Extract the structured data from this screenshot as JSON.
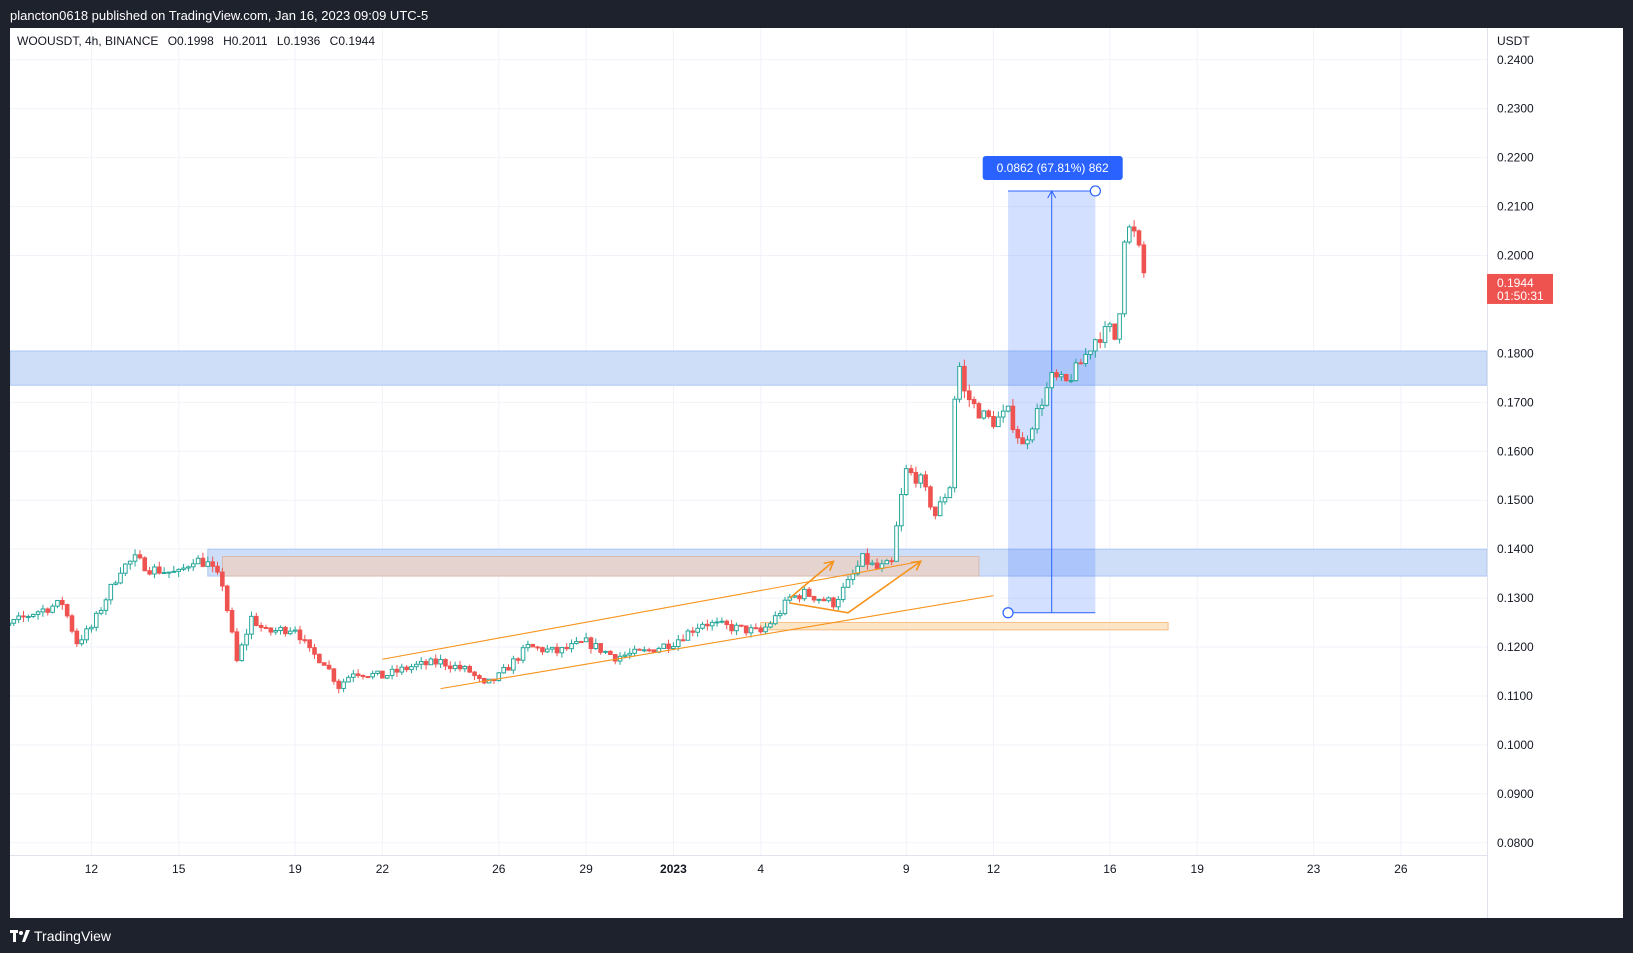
{
  "header": {
    "published_text": "plancton0618 published on TradingView.com, Jan 16, 2023 09:09 UTC-5"
  },
  "footer": {
    "brand": "TradingView"
  },
  "chart_data": {
    "type": "candlestick",
    "symbol": "WOOUSDT",
    "interval": "4h",
    "exchange": "BINANCE",
    "symbol_line": "WOOUSDT, 4h, BINANCE",
    "ohlc": {
      "open": "O0.1998",
      "high": "H0.2011",
      "low": "L0.1936",
      "close": "C0.1944"
    },
    "currency": "USDT",
    "last_price": {
      "value": 0.1944,
      "label": "0.1944",
      "countdown": "01:50:31"
    },
    "y_axis": {
      "ylim": [
        0.0775,
        0.2465
      ],
      "ticks": [
        0.08,
        0.09,
        0.1,
        0.11,
        0.12,
        0.13,
        0.14,
        0.15,
        0.16,
        0.17,
        0.18,
        0.2,
        0.21,
        0.22,
        0.23,
        0.24
      ],
      "tick_labels": [
        "0.0800",
        "0.0900",
        "0.1000",
        "0.1100",
        "0.1200",
        "0.1300",
        "0.1400",
        "0.1500",
        "0.1600",
        "0.1700",
        "0.1800",
        "0.2000",
        "0.2100",
        "0.2200",
        "0.2300",
        "0.2400"
      ]
    },
    "x_axis": {
      "date_range": [
        "2022-12-08",
        "2023-01-29"
      ],
      "ticks": [
        {
          "date": "2022-12-12",
          "label": "12"
        },
        {
          "date": "2022-12-15",
          "label": "15"
        },
        {
          "date": "2022-12-19",
          "label": "19"
        },
        {
          "date": "2022-12-22",
          "label": "22"
        },
        {
          "date": "2022-12-26",
          "label": "26"
        },
        {
          "date": "2022-12-29",
          "label": "29"
        },
        {
          "date": "2023-01-01",
          "label": "2023",
          "bold": true
        },
        {
          "date": "2023-01-04",
          "label": "4"
        },
        {
          "date": "2023-01-09",
          "label": "9"
        },
        {
          "date": "2023-01-12",
          "label": "12"
        },
        {
          "date": "2023-01-16",
          "label": "16"
        },
        {
          "date": "2023-01-19",
          "label": "19"
        },
        {
          "date": "2023-01-23",
          "label": "23"
        },
        {
          "date": "2023-01-26",
          "label": "26"
        }
      ]
    },
    "close_path": [
      [
        "2022-12-08",
        0.125
      ],
      [
        "2022-12-09",
        0.124
      ],
      [
        "2022-12-10",
        0.127
      ],
      [
        "2022-12-11",
        0.129
      ],
      [
        "2022-12-11T12",
        0.121
      ],
      [
        "2022-12-12",
        0.124
      ],
      [
        "2022-12-12T12",
        0.13
      ],
      [
        "2022-12-13",
        0.136
      ],
      [
        "2022-12-13T12",
        0.138
      ],
      [
        "2022-12-14",
        0.136
      ],
      [
        "2022-12-15",
        0.135
      ],
      [
        "2022-12-15T12",
        0.138
      ],
      [
        "2022-12-16",
        0.137
      ],
      [
        "2022-12-16T12",
        0.133
      ],
      [
        "2022-12-17",
        0.117
      ],
      [
        "2022-12-17T12",
        0.126
      ],
      [
        "2022-12-18",
        0.123
      ],
      [
        "2022-12-19",
        0.124
      ],
      [
        "2022-12-19T12",
        0.119
      ],
      [
        "2022-12-20",
        0.117
      ],
      [
        "2022-12-20T12",
        0.112
      ],
      [
        "2022-12-21",
        0.115
      ],
      [
        "2022-12-22",
        0.114
      ],
      [
        "2022-12-23",
        0.116
      ],
      [
        "2022-12-24",
        0.117
      ],
      [
        "2022-12-25",
        0.115
      ],
      [
        "2022-12-25T12",
        0.112
      ],
      [
        "2022-12-26",
        0.114
      ],
      [
        "2022-12-27",
        0.12
      ],
      [
        "2022-12-28",
        0.119
      ],
      [
        "2022-12-29",
        0.121
      ],
      [
        "2022-12-30",
        0.118
      ],
      [
        "2022-12-31",
        0.119
      ],
      [
        "2023-01-01",
        0.121
      ],
      [
        "2023-01-02",
        0.125
      ],
      [
        "2023-01-03",
        0.124
      ],
      [
        "2023-01-04",
        0.123
      ],
      [
        "2023-01-04T12",
        0.126
      ],
      [
        "2023-01-05",
        0.13
      ],
      [
        "2023-01-05T12",
        0.131
      ],
      [
        "2023-01-06",
        0.13
      ],
      [
        "2023-01-06T12",
        0.129
      ],
      [
        "2023-01-07",
        0.133
      ],
      [
        "2023-01-07T12",
        0.138
      ],
      [
        "2023-01-08",
        0.136
      ],
      [
        "2023-01-08T12",
        0.137
      ],
      [
        "2023-01-08T18",
        0.148
      ],
      [
        "2023-01-09",
        0.156
      ],
      [
        "2023-01-09T12",
        0.154
      ],
      [
        "2023-01-10",
        0.147
      ],
      [
        "2023-01-10T12",
        0.153
      ],
      [
        "2023-01-10T18",
        0.18
      ],
      [
        "2023-01-11",
        0.172
      ],
      [
        "2023-01-11T12",
        0.168
      ],
      [
        "2023-01-12",
        0.166
      ],
      [
        "2023-01-12T12",
        0.168
      ],
      [
        "2023-01-13",
        0.161
      ],
      [
        "2023-01-13T12",
        0.168
      ],
      [
        "2023-01-14",
        0.175
      ],
      [
        "2023-01-14T12",
        0.174
      ],
      [
        "2023-01-15",
        0.178
      ],
      [
        "2023-01-15T12",
        0.183
      ],
      [
        "2023-01-16",
        0.185
      ],
      [
        "2023-01-16T06",
        0.182
      ],
      [
        "2023-01-16T12",
        0.204
      ],
      [
        "2023-01-16T18",
        0.206
      ],
      [
        "2023-01-17",
        0.201
      ],
      [
        "2023-01-17T06",
        0.194
      ]
    ],
    "zones": [
      {
        "name": "resistance-zone-upper",
        "low": 0.1735,
        "high": 0.1805,
        "from": "2022-12-08",
        "to": "2023-01-29",
        "color": "#c9daf8"
      },
      {
        "name": "support-zone-blue",
        "low": 0.1345,
        "high": 0.14,
        "from": "2022-12-16",
        "to": "2023-01-29",
        "color": "#c9daf8"
      },
      {
        "name": "brown-zone",
        "low": 0.1345,
        "high": 0.1385,
        "from": "2022-12-16T12",
        "to": "2023-01-11T12",
        "color": "#e8d1c8"
      },
      {
        "name": "orange-zone",
        "low": 0.1235,
        "high": 0.125,
        "from": "2023-01-04",
        "to": "2023-01-18",
        "color": "#fde2c2"
      }
    ],
    "channel_lines": [
      [
        [
          "2022-12-24",
          0.1115
        ],
        [
          "2023-01-12",
          0.1305
        ]
      ],
      [
        [
          "2022-12-22",
          0.1175
        ],
        [
          "2023-01-09T12",
          0.1375
        ]
      ]
    ],
    "orange_arrows": [
      [
        [
          "2023-01-05",
          0.13
        ],
        [
          "2023-01-06T12",
          0.1375
        ]
      ],
      [
        [
          "2023-01-05",
          0.129
        ],
        [
          "2023-01-07",
          0.127
        ],
        [
          "2023-01-09T12",
          0.1375
        ]
      ]
    ],
    "measure": {
      "label": "0.0862 (67.81%) 862",
      "from_price": 0.127,
      "to_price": 0.2132,
      "from": "2023-01-12T12",
      "to": "2023-01-15T12"
    },
    "colors": {
      "up": "#26a69a",
      "down": "#ef5350",
      "accent": "#2962ff",
      "orange": "#f7931a",
      "price_label": "#ef5350"
    }
  }
}
